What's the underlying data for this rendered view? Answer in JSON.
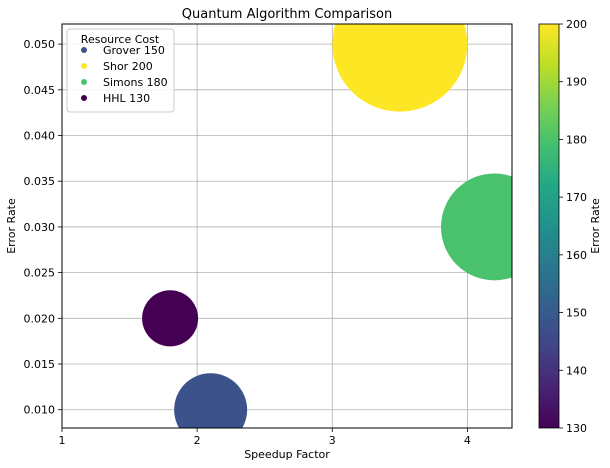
{
  "chart_data": {
    "type": "scatter",
    "title": "Quantum Algorithm Comparison",
    "xlabel": "Speedup Factor",
    "ylabel": "Error Rate",
    "xlim": [
      1.0,
      4.33
    ],
    "ylim": [
      0.008,
      0.0522
    ],
    "xticks": [
      1,
      2,
      3,
      4
    ],
    "xtick_labels": [
      "1",
      "2",
      "3",
      "4"
    ],
    "yticks": [
      0.01,
      0.015,
      0.02,
      0.025,
      0.03,
      0.035,
      0.04,
      0.045,
      0.05
    ],
    "ytick_labels": [
      "0.010",
      "0.015",
      "0.020",
      "0.025",
      "0.030",
      "0.035",
      "0.040",
      "0.045",
      "0.050"
    ],
    "grid": true,
    "legend": {
      "title": "Resource Cost",
      "placement": "top-left",
      "entries": [
        "Grover 150",
        "Shor 200",
        "Simons 180",
        "HHL 130"
      ]
    },
    "points": [
      {
        "name": "Grover",
        "x": 2.1,
        "y": 0.01,
        "cost": 150,
        "color": "#3b528b"
      },
      {
        "name": "Shor",
        "x": 3.5,
        "y": 0.05,
        "cost": 200,
        "color": "#fde725"
      },
      {
        "name": "Simons",
        "x": 4.2,
        "y": 0.03,
        "cost": 180,
        "color": "#49c16d"
      },
      {
        "name": "HHL",
        "x": 1.8,
        "y": 0.02,
        "cost": 130,
        "color": "#440154"
      }
    ],
    "colorbar": {
      "label": "Error Rate",
      "min": 130,
      "max": 200,
      "ticks": [
        130,
        140,
        150,
        160,
        170,
        180,
        190,
        200
      ],
      "colormap": "viridis"
    }
  }
}
